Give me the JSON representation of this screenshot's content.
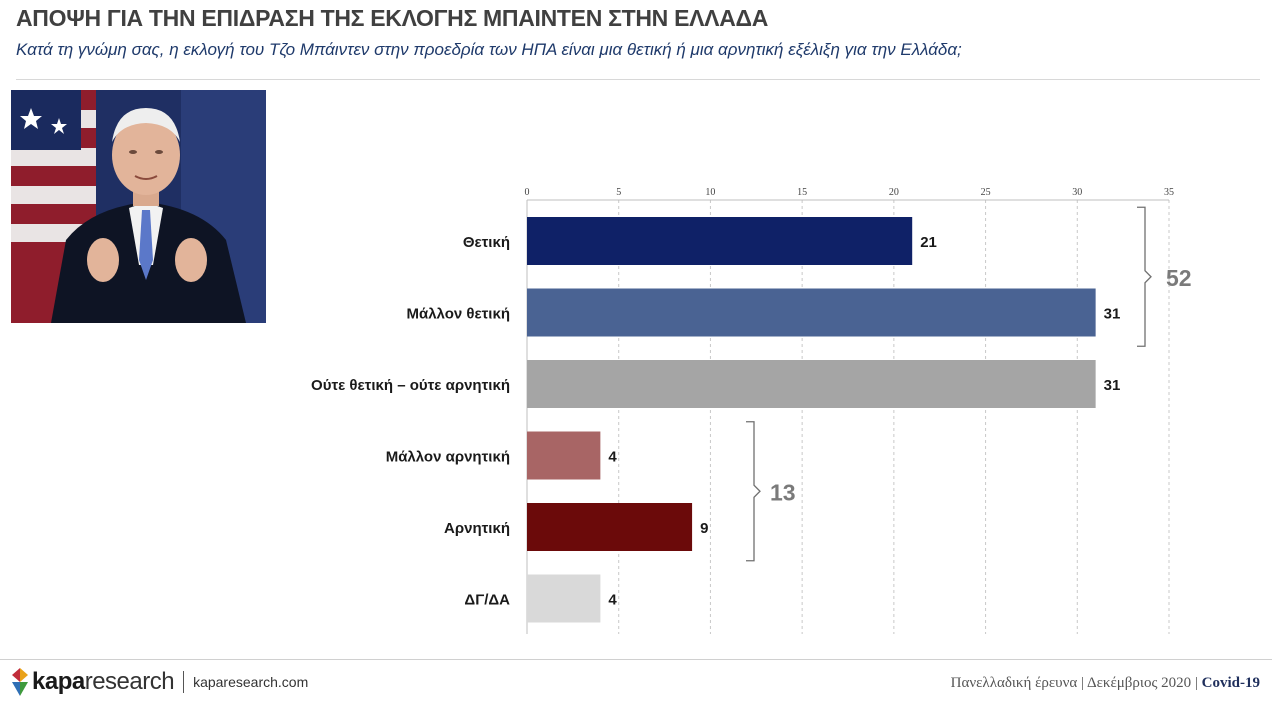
{
  "header": {
    "title": "ΑΠΟΨΗ ΓΙΑ ΤΗΝ ΕΠΙΔΡΑΣΗ ΤΗΣ ΕΚΛΟΓΗΣ ΜΠΑΙΝΤΕΝ ΣΤΗΝ ΕΛΛΑΔΑ",
    "subtitle": "Κατά τη γνώμη σας, η εκλογή του Τζο Μπάιντεν στην προεδρία των ΗΠΑ είναι μια θετική ή μια αρνητική εξέλιξη για την Ελλάδα;"
  },
  "chart_data": {
    "type": "bar",
    "orientation": "horizontal",
    "categories": [
      "Θετική",
      "Μάλλον θετική",
      "Ούτε θετική – ούτε αρνητική",
      "Μάλλον αρνητική",
      "Αρνητική",
      "ΔΓ/ΔΑ"
    ],
    "values": [
      21,
      31,
      31,
      4,
      9,
      4
    ],
    "colors": [
      "#0f2167",
      "#4a6393",
      "#a5a5a5",
      "#a86565",
      "#6b0a0a",
      "#d9d9d9"
    ],
    "xlim": [
      0,
      35
    ],
    "xticks": [
      0,
      5,
      10,
      15,
      20,
      25,
      30,
      35
    ],
    "axis_position": "top",
    "grid": "dashed-vertical",
    "groups": [
      {
        "label": "52",
        "from": 0,
        "to": 1
      },
      {
        "label": "13",
        "from": 3,
        "to": 4
      }
    ]
  },
  "footer": {
    "logo_bold": "kapa",
    "logo_light": "research",
    "url": "kaparesearch.com",
    "survey": "Πανελλαδική έρευνα",
    "date": "Δεκέμβριος 2020",
    "tag": "Covid-19",
    "sep": "|"
  }
}
